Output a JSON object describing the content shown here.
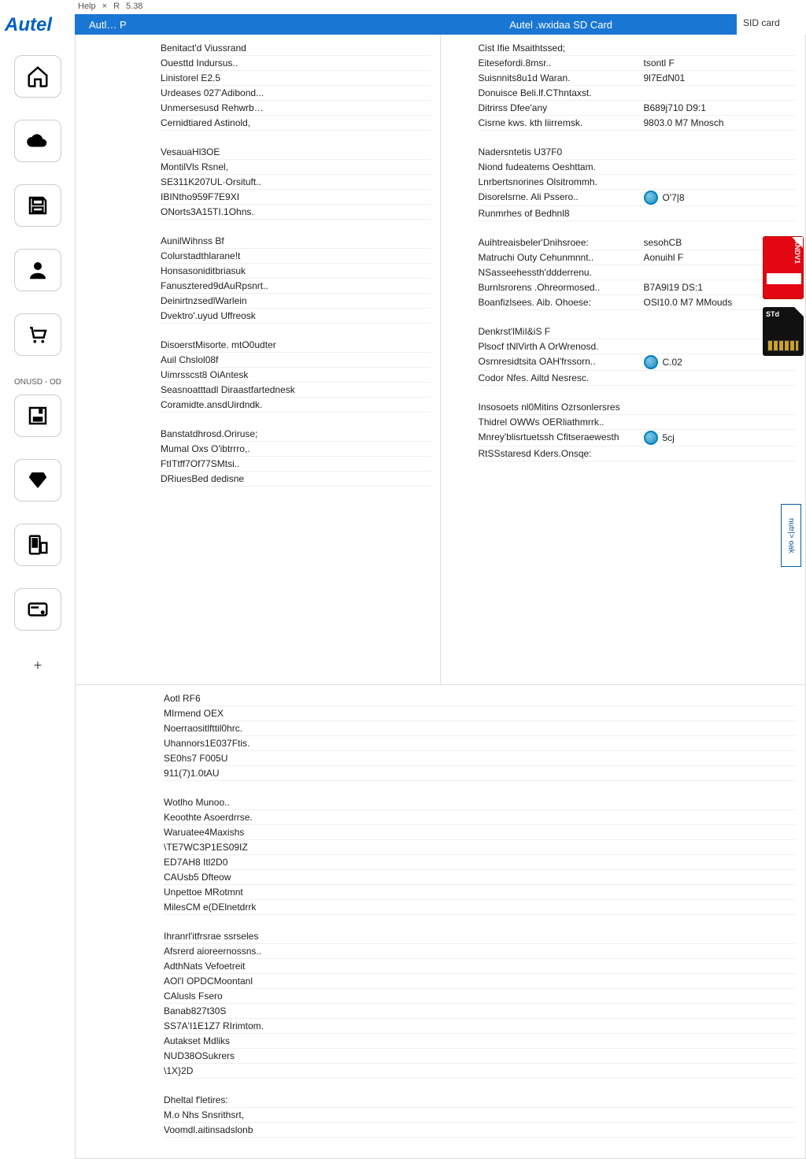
{
  "colors": {
    "brand_blue": "#1976d2",
    "logo_blue": "#0060c0",
    "accent_teal": "#2090c0",
    "sd_red": "#e30613"
  },
  "logo": "Autel",
  "top_menu": {
    "item1": "Help",
    "item2": "×",
    "item3": "R",
    "item4": "5.38"
  },
  "header": {
    "tab_left": "Autl… P",
    "title_right": "Autel .wxidaa SD Card",
    "corner_label": "SID card"
  },
  "sidebar": {
    "items": [
      {
        "name": "home"
      },
      {
        "name": "cloud"
      },
      {
        "name": "save"
      },
      {
        "name": "user"
      },
      {
        "name": "cart"
      }
    ],
    "section_label": "ONUSD - OD",
    "items2": [
      {
        "name": "disk"
      },
      {
        "name": "diamond"
      },
      {
        "name": "device"
      },
      {
        "name": "card"
      }
    ],
    "plus": "+"
  },
  "left_col": {
    "g1": [
      "Benitact'd Viussrand",
      "Ouesttd Indursus..",
      "Linistorel E2.5",
      "Urdeases 027'Adibond...",
      "Unmersesusd Rehwrb…",
      "Cernidtiared Astinold,"
    ],
    "g2": [
      "VesauaHl3OE",
      "MontilVls Rsnel,",
      "SE311K207UL·Orsituft..",
      "IBINtho959F7E9XI",
      "ONorts3A15TI.1Ohns."
    ],
    "g3": [
      "AunilWihnss Bf",
      "Colurstadthlarane!t",
      "Honsasoniditbriasuk",
      "Fanusztered9dAuRpsnrt..",
      "DeinirtnzsedlWarlein",
      "Dvektro'.uyud Uffreosk"
    ],
    "g4": [
      "DisoerstMisorte. mtO0udter",
      "Auil Chslol08f",
      "Uimrsscst8 OiAntesk",
      "Seasnoatttadl Diraastfartednesk",
      "Coramidte.ansdUirdndk."
    ],
    "g5": [
      "Banstatdhrosd.Oriruse;",
      "Mumal Oxs O'ibtrrro,.",
      "FtITtff7Of77SMtsi..",
      "DRiuesBed dedisne"
    ]
  },
  "right_col": {
    "g1": [
      {
        "l": "Cist Ifie Msaithtssed;",
        "r": ""
      },
      {
        "l": "Eitesefordi.8msr..",
        "r": "tsontl F"
      },
      {
        "l": "Suisnnits8u1d Waran.",
        "r": "9l7EdN01"
      },
      {
        "l": "Donuisce Beli.lf.CThntaxst.",
        "r": ""
      },
      {
        "l": "Ditrirss Dfee'any",
        "r": "B689j710 D9:1"
      },
      {
        "l": "Cisrne kws. kth liirremsk.",
        "r": "9803.0 M7 Mnosch"
      }
    ],
    "g2": [
      {
        "l": "Nadersntetis U37F0",
        "r": ""
      },
      {
        "l": "Niond fudeatems Oeshttam.",
        "r": ""
      },
      {
        "l": "Lnrbertsnorines Olsitrommh.",
        "r": ""
      },
      {
        "l": "Disorelsrne. Ali Pssero..",
        "r": "badge:O'7|8"
      },
      {
        "l": "Runmrhes of Bedhnl8",
        "r": ""
      }
    ],
    "g3": [
      {
        "l": "Auihtreaisbeler'Dnihsroee:",
        "r": "sesohCB"
      },
      {
        "l": "Matruchi Outy Cehunmnnt..",
        "r": "Aonuihl F"
      },
      {
        "l": "NSasseehessth'ddderrenu.",
        "r": ""
      },
      {
        "l": "Burnlsrorens .Ohreormosed..",
        "r": "B7A9l19 DS:1"
      },
      {
        "l": "Boanfizlsees. Aib. Ohoese:",
        "r": "OSl10.0 M7 MMouds"
      }
    ],
    "g4": [
      {
        "l": "Denkrst'lMiI&iS F",
        "r": ""
      },
      {
        "l": "Plsocf tNlVirth A OrWrenosd.",
        "r": ""
      },
      {
        "l": "Osrnresidtsita OAH'frssorn..",
        "r": "badge:C.02"
      },
      {
        "l": "Codor Nfes. Ailtd Nesresc.",
        "r": ""
      }
    ],
    "g5": [
      {
        "l": "Insosoets nl0Mitins Ozrsonlersres",
        "r": ""
      },
      {
        "l": "Thidrel OWWs OERliathmrrk..",
        "r": ""
      },
      {
        "l": "Mnrey'blisrtuetssh Cfitseraewesth",
        "r": "badge:5cj"
      },
      {
        "l": "RtSSstaresd Kders.Onsqe:",
        "r": ""
      }
    ]
  },
  "lower_left": {
    "g1": [
      "Aotl RF6",
      "MIrmend OEX",
      "Noerraositlfttil0hrc.",
      "Uhannors1E037Ftis.",
      "SE0hs7 F005U",
      "911(7)1.0tAU"
    ],
    "g2": [
      "Wotlho Munoo..",
      "Keoothte Asoerdrrse.",
      "Waruatee4Maxishs",
      "\\TE7WC3P1ES09IZ",
      "ED7AH8 Itl2D0",
      "CAUsb5 Dfteow",
      "Unpettoe MRotmnt",
      "MilesCM e(DElnetdrrk"
    ],
    "g3": [
      "Ihranrl'itfrsrae ssrseles",
      "Afsrerd aioreernossns..",
      "AdthNats Vefoetreit",
      "AOl'I OPDCMoontanl",
      "CAlusls Fsero",
      "Banab827t30S",
      "SS7A'I1E1Z7 RIrimtom.",
      "Autakset Mdliks",
      "NUD38OSukrers",
      "\\1X}2D"
    ],
    "g4": [
      "Dheltal f'letires:",
      "M.o Nhs Snsrithsrt,",
      "Voomdl.aitinsadslonb"
    ]
  },
  "right_rail": {
    "red_label": "XNDV1",
    "black_label": "STd",
    "lower_tag": "nutr|> oak"
  }
}
